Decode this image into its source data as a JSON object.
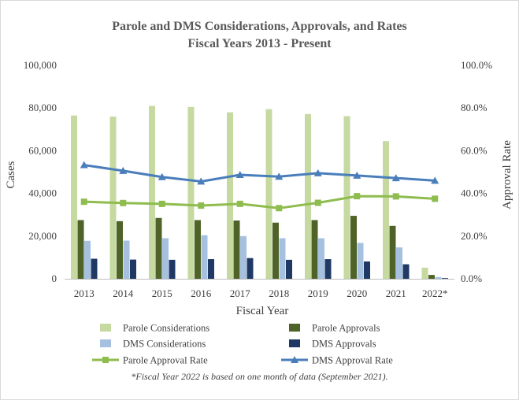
{
  "chart_data": {
    "type": "bar",
    "title": "Parole and DMS Considerations, Approvals, and Rates",
    "subtitle": "Fiscal Years 2013 - Present",
    "xlabel": "Fiscal Year",
    "ylabel": "Cases",
    "y2label": "Approval Rate",
    "categories": [
      "2013",
      "2014",
      "2015",
      "2016",
      "2017",
      "2018",
      "2019",
      "2020",
      "2021",
      "2022*"
    ],
    "ylim": [
      0,
      100000
    ],
    "y2lim": [
      0,
      100
    ],
    "yticks": [
      "0",
      "20,000",
      "40,000",
      "60,000",
      "80,000",
      "100,000"
    ],
    "y2ticks": [
      "0.0%",
      "20.0%",
      "40.0%",
      "60.0%",
      "80.0%",
      "100.0%"
    ],
    "grid": false,
    "legend_position": "bottom",
    "series": [
      {
        "name": "Parole Considerations",
        "kind": "bar",
        "color": "#c5d9a0",
        "values": [
          76500,
          76000,
          81000,
          80500,
          78000,
          79500,
          77200,
          76200,
          64500,
          5200
        ]
      },
      {
        "name": "Parole Approvals",
        "kind": "bar",
        "color": "#4f6228",
        "values": [
          27500,
          27000,
          28500,
          27500,
          27300,
          26300,
          27500,
          29500,
          24800,
          1800
        ]
      },
      {
        "name": "DMS Considerations",
        "kind": "bar",
        "color": "#a6c0e0",
        "values": [
          17800,
          17900,
          19000,
          20400,
          20000,
          19000,
          19000,
          16800,
          14700,
          800
        ]
      },
      {
        "name": "DMS Approvals",
        "kind": "bar",
        "color": "#1f3864",
        "values": [
          9400,
          9000,
          8900,
          9200,
          9700,
          8900,
          9200,
          8100,
          6800,
          300
        ]
      },
      {
        "name": "Parole Approval Rate",
        "kind": "line",
        "axis": "right",
        "color": "#8fbc4e",
        "marker": "square",
        "values": [
          36.1,
          35.5,
          35.1,
          34.3,
          35.1,
          33.1,
          35.6,
          38.7,
          38.6,
          37.5
        ]
      },
      {
        "name": "DMS Approval Rate",
        "kind": "line",
        "axis": "right",
        "color": "#4a7ebb",
        "marker": "triangle",
        "values": [
          53.3,
          50.6,
          47.7,
          45.6,
          48.7,
          47.9,
          49.5,
          48.4,
          47.2,
          46.0
        ]
      }
    ],
    "footnote": "*Fiscal Year 2022 is based on one month of data (September 2021)."
  }
}
